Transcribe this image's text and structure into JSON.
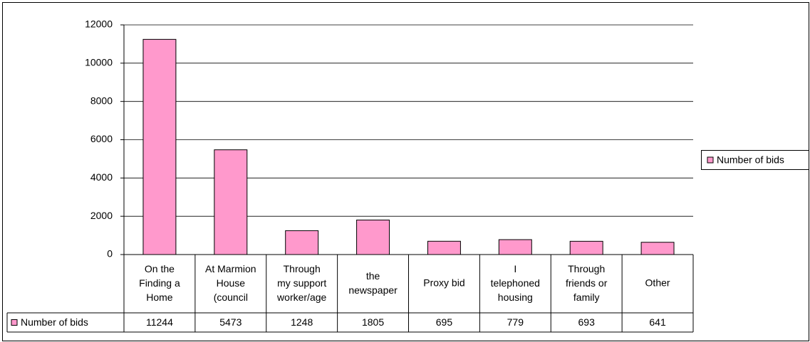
{
  "chart_data": {
    "type": "bar",
    "categories": [
      "On the\nFinding a\nHome",
      "At Marmion\nHouse\n(council",
      "Through\nmy support\nworker/age",
      "the\nnewspaper",
      "Proxy bid",
      "I\ntelephoned\nhousing",
      "Through\nfriends or\nfamily",
      "Other"
    ],
    "series": [
      {
        "name": "Number of bids",
        "color": "#ff99cc",
        "values": [
          11244,
          5473,
          1248,
          1805,
          695,
          779,
          693,
          641
        ]
      }
    ],
    "ylim": [
      0,
      12000
    ],
    "yticks": [
      0,
      2000,
      4000,
      6000,
      8000,
      10000,
      12000
    ],
    "grid": true,
    "legend": "right",
    "data_table": true
  }
}
